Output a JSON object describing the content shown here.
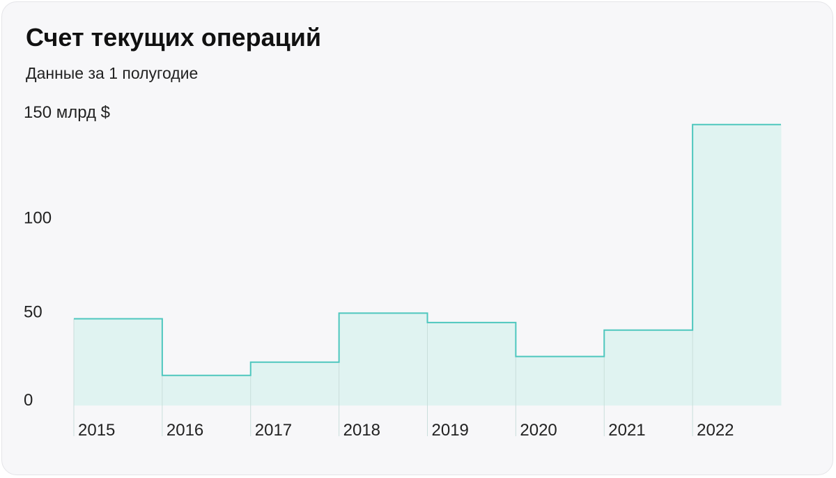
{
  "header": {
    "title": "Счет текущих операций",
    "subtitle": "Данные за 1 полугодие"
  },
  "colors": {
    "line": "#4ec7be",
    "fill": "#e0f3f1",
    "divider": "#c9dedb",
    "background": "#f7f7f9"
  },
  "chart_data": {
    "type": "area",
    "step": true,
    "categories": [
      "2015",
      "2016",
      "2017",
      "2018",
      "2019",
      "2020",
      "2021",
      "2022"
    ],
    "values": [
      46,
      16,
      23,
      49,
      44,
      26,
      40,
      149
    ],
    "y_ticks": [
      {
        "value": 0,
        "label": "0"
      },
      {
        "value": 50,
        "label": "50"
      },
      {
        "value": 100,
        "label": "100"
      },
      {
        "value": 150,
        "label": "150 млрд $"
      }
    ],
    "ylim": [
      0,
      150
    ],
    "ylabel": "",
    "xlabel": "",
    "grid": false,
    "legend": "none"
  }
}
